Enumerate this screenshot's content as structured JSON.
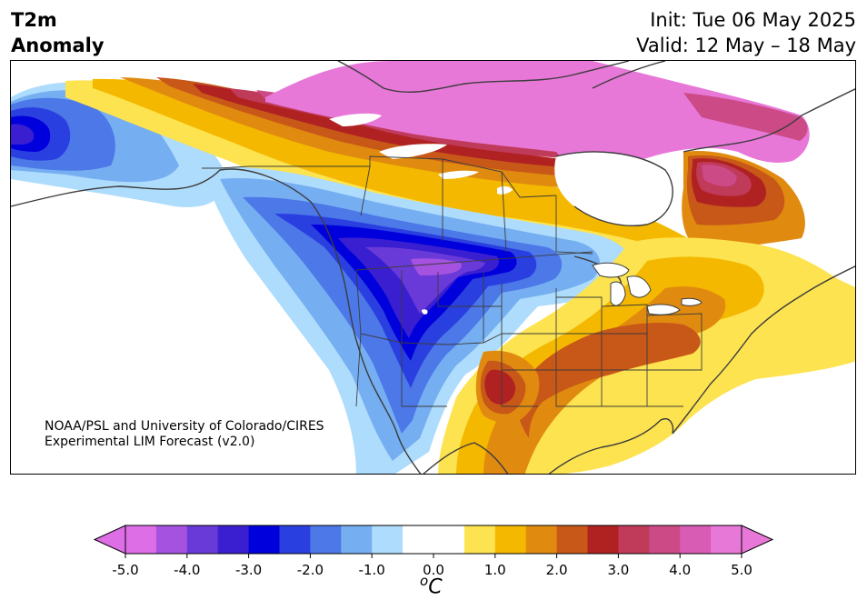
{
  "header": {
    "title_line1": "T2m",
    "title_line2": "Anomaly",
    "init_text": "Init: Tue 06 May 2025",
    "valid_text": "Valid: 12 May – 18 May"
  },
  "credit": {
    "line1": "NOAA/PSL and University of Colorado/CIRES",
    "line2": "Experimental LIM Forecast (v2.0)"
  },
  "colorbar": {
    "unit_label": "oC",
    "ticks": [
      "-5.0",
      "-4.0",
      "-3.0",
      "-2.0",
      "-1.0",
      "0.0",
      "1.0",
      "2.0",
      "3.0",
      "4.0",
      "5.0"
    ],
    "tick_values": [
      -5,
      -4,
      -3,
      -2,
      -1,
      0,
      1,
      2,
      3,
      4,
      5
    ],
    "levels": [
      -5.0,
      -4.5,
      -4.0,
      -3.5,
      -3.0,
      -2.5,
      -2.0,
      -1.5,
      -1.0,
      -0.5,
      0.5,
      1.0,
      1.5,
      2.0,
      2.5,
      3.0,
      3.5,
      4.0,
      4.5,
      5.0
    ],
    "colors": [
      "#dd6ee6",
      "#a552e0",
      "#6a3ad8",
      "#3a1fd0",
      "#0000dc",
      "#2a3fe0",
      "#4c78e8",
      "#76aef2",
      "#aedcfc",
      "#ffffff",
      "#fde34f",
      "#f4b800",
      "#e08a10",
      "#c85818",
      "#b02222",
      "#c03a5a",
      "#cc4a86",
      "#d85cb4",
      "#e878d8"
    ],
    "under_color": "#dd6ee6",
    "over_color": "#e878d8"
  },
  "map": {
    "variable": "2-m temperature anomaly",
    "land_color": "#ffffff",
    "ocean_color": "#ffffff",
    "border_color": "#3c3c3c"
  }
}
